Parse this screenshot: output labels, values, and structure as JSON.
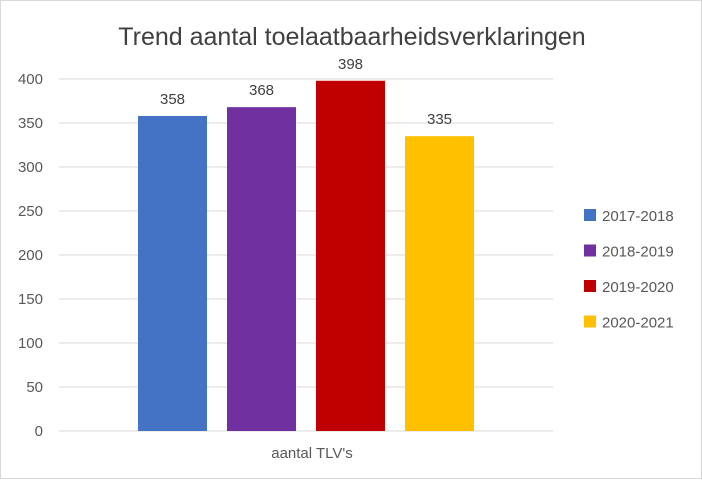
{
  "chart_data": {
    "type": "bar",
    "title": "Trend aantal toelaatbaarheidsverklaringen",
    "categories": [
      "aantal TLV's"
    ],
    "series": [
      {
        "name": "2017-2018",
        "values": [
          358
        ],
        "color": "#4472c4"
      },
      {
        "name": "2018-2019",
        "values": [
          368
        ],
        "color": "#7030a0"
      },
      {
        "name": "2019-2020",
        "values": [
          398
        ],
        "color": "#c00000"
      },
      {
        "name": "2020-2021",
        "values": [
          335
        ],
        "color": "#ffc000"
      }
    ],
    "ylim": [
      0,
      400
    ],
    "yticks": [
      0,
      50,
      100,
      150,
      200,
      250,
      300,
      350,
      400
    ],
    "grid": true,
    "legend_position": "right",
    "data_labels": true
  }
}
